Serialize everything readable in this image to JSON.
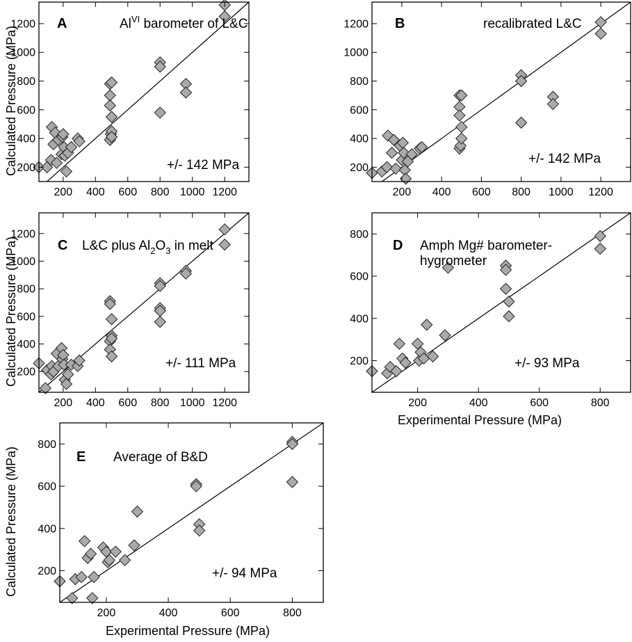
{
  "colors": {
    "marker_fill": "#aaaaaa",
    "marker_stroke": "#222222",
    "line": "#000000"
  },
  "figure": {
    "ylabel": "Calculated Pressure (MPa)",
    "xlabel": "Experimental Pressure (MPa)"
  },
  "chart_data": [
    {
      "type": "scatter",
      "panel": "A",
      "title_main": "Al",
      "title_sup": "VI",
      "title_rest": " barometer of L&C",
      "note": "+/- 142 MPa",
      "xlim": [
        50,
        1350
      ],
      "ylim": [
        100,
        1350
      ],
      "xticks": [
        200,
        400,
        600,
        800,
        1000,
        1200
      ],
      "yticks": [
        200,
        400,
        600,
        800,
        1000,
        1200
      ],
      "reference_line": "1:1",
      "points": [
        [
          50,
          200
        ],
        [
          100,
          200
        ],
        [
          125,
          250
        ],
        [
          130,
          480
        ],
        [
          140,
          360
        ],
        [
          150,
          440
        ],
        [
          160,
          230
        ],
        [
          170,
          390
        ],
        [
          190,
          290
        ],
        [
          195,
          410
        ],
        [
          200,
          430
        ],
        [
          205,
          340
        ],
        [
          210,
          280
        ],
        [
          220,
          170
        ],
        [
          230,
          300
        ],
        [
          250,
          340
        ],
        [
          290,
          400
        ],
        [
          300,
          380
        ],
        [
          490,
          780
        ],
        [
          490,
          700
        ],
        [
          490,
          630
        ],
        [
          490,
          390
        ],
        [
          495,
          430
        ],
        [
          500,
          790
        ],
        [
          500,
          550
        ],
        [
          500,
          450
        ],
        [
          500,
          410
        ],
        [
          800,
          930
        ],
        [
          800,
          900
        ],
        [
          800,
          580
        ],
        [
          960,
          780
        ],
        [
          960,
          720
        ],
        [
          1200,
          1330
        ],
        [
          1200,
          1250
        ]
      ]
    },
    {
      "type": "scatter",
      "panel": "B",
      "title_main": "recalibrated L&C",
      "note": "+/- 142 MPa",
      "xlim": [
        50,
        1350
      ],
      "ylim": [
        100,
        1350
      ],
      "xticks": [
        200,
        400,
        600,
        800,
        1000,
        1200
      ],
      "yticks": [
        200,
        400,
        600,
        800,
        1000,
        1200
      ],
      "reference_line": "1:1",
      "points": [
        [
          50,
          160
        ],
        [
          100,
          170
        ],
        [
          125,
          200
        ],
        [
          130,
          420
        ],
        [
          150,
          300
        ],
        [
          160,
          390
        ],
        [
          170,
          190
        ],
        [
          190,
          350
        ],
        [
          200,
          250
        ],
        [
          205,
          370
        ],
        [
          210,
          300
        ],
        [
          215,
          180
        ],
        [
          220,
          120
        ],
        [
          230,
          240
        ],
        [
          250,
          290
        ],
        [
          290,
          330
        ],
        [
          300,
          340
        ],
        [
          490,
          700
        ],
        [
          490,
          620
        ],
        [
          490,
          560
        ],
        [
          490,
          330
        ],
        [
          495,
          350
        ],
        [
          500,
          700
        ],
        [
          500,
          480
        ],
        [
          500,
          400
        ],
        [
          800,
          840
        ],
        [
          800,
          800
        ],
        [
          800,
          510
        ],
        [
          960,
          690
        ],
        [
          960,
          640
        ],
        [
          1200,
          1210
        ],
        [
          1200,
          1130
        ]
      ]
    },
    {
      "type": "scatter",
      "panel": "C",
      "title_main": "L&C plus Al",
      "title_sub1": "2",
      "title_mid": "O",
      "title_sub2": "3",
      "title_rest": " in melt",
      "note": "+/- 111 MPa",
      "xlim": [
        50,
        1350
      ],
      "ylim": [
        50,
        1350
      ],
      "xticks": [
        200,
        400,
        600,
        800,
        1000,
        1200
      ],
      "yticks": [
        200,
        400,
        600,
        800,
        1000,
        1200
      ],
      "reference_line": "1:1",
      "points": [
        [
          50,
          260
        ],
        [
          90,
          80
        ],
        [
          100,
          210
        ],
        [
          125,
          180
        ],
        [
          130,
          240
        ],
        [
          140,
          200
        ],
        [
          160,
          330
        ],
        [
          170,
          240
        ],
        [
          190,
          370
        ],
        [
          195,
          290
        ],
        [
          200,
          320
        ],
        [
          205,
          250
        ],
        [
          210,
          140
        ],
        [
          220,
          110
        ],
        [
          230,
          180
        ],
        [
          250,
          250
        ],
        [
          290,
          240
        ],
        [
          300,
          280
        ],
        [
          490,
          710
        ],
        [
          490,
          690
        ],
        [
          490,
          420
        ],
        [
          490,
          360
        ],
        [
          500,
          580
        ],
        [
          500,
          460
        ],
        [
          500,
          440
        ],
        [
          500,
          310
        ],
        [
          800,
          840
        ],
        [
          800,
          820
        ],
        [
          800,
          660
        ],
        [
          800,
          640
        ],
        [
          800,
          560
        ],
        [
          960,
          930
        ],
        [
          960,
          910
        ],
        [
          1200,
          1230
        ],
        [
          1200,
          1120
        ]
      ]
    },
    {
      "type": "scatter",
      "panel": "D",
      "title_line1": "Amph Mg# barometer-",
      "title_line2": "hygrometer",
      "note": "+/- 93 MPa",
      "xlim": [
        50,
        900
      ],
      "ylim": [
        50,
        900
      ],
      "xticks": [
        200,
        400,
        600,
        800
      ],
      "yticks": [
        200,
        400,
        600,
        800
      ],
      "xlabel": "Experimental Pressure (MPa)",
      "reference_line": "1:1",
      "points": [
        [
          50,
          150
        ],
        [
          100,
          140
        ],
        [
          110,
          170
        ],
        [
          130,
          150
        ],
        [
          140,
          280
        ],
        [
          150,
          210
        ],
        [
          160,
          190
        ],
        [
          200,
          280
        ],
        [
          205,
          200
        ],
        [
          210,
          240
        ],
        [
          220,
          210
        ],
        [
          230,
          370
        ],
        [
          250,
          220
        ],
        [
          290,
          320
        ],
        [
          300,
          640
        ],
        [
          490,
          650
        ],
        [
          490,
          630
        ],
        [
          490,
          540
        ],
        [
          500,
          480
        ],
        [
          500,
          410
        ],
        [
          800,
          790
        ],
        [
          800,
          730
        ]
      ]
    },
    {
      "type": "scatter",
      "panel": "E",
      "title_main": "Average of B&D",
      "note": "+/- 94 MPa",
      "xlim": [
        50,
        900
      ],
      "ylim": [
        50,
        900
      ],
      "xticks": [
        200,
        400,
        600,
        800
      ],
      "yticks": [
        200,
        400,
        600,
        800
      ],
      "xlabel": "Experimental Pressure (MPa)",
      "reference_line": "1:1",
      "points": [
        [
          50,
          150
        ],
        [
          90,
          70
        ],
        [
          100,
          160
        ],
        [
          120,
          170
        ],
        [
          130,
          340
        ],
        [
          140,
          260
        ],
        [
          150,
          280
        ],
        [
          155,
          70
        ],
        [
          160,
          170
        ],
        [
          190,
          310
        ],
        [
          200,
          290
        ],
        [
          205,
          240
        ],
        [
          210,
          250
        ],
        [
          230,
          290
        ],
        [
          260,
          250
        ],
        [
          290,
          320
        ],
        [
          300,
          480
        ],
        [
          490,
          610
        ],
        [
          490,
          600
        ],
        [
          500,
          420
        ],
        [
          500,
          390
        ],
        [
          800,
          810
        ],
        [
          800,
          800
        ],
        [
          800,
          620
        ]
      ]
    }
  ]
}
